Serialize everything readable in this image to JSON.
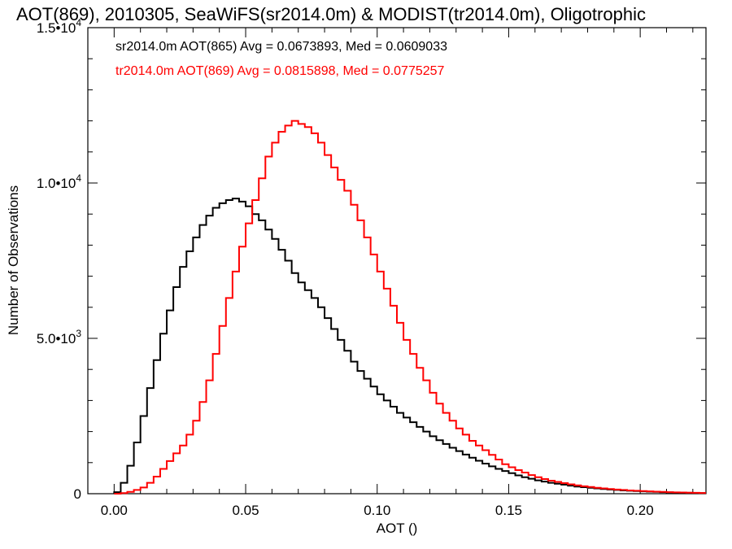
{
  "chart_data": {
    "type": "line",
    "title": "AOT(869), 2010305, SeaWiFS(sr2014.0m) & MODIST(tr2014.0m), Oligotrophic",
    "xlabel": "AOT ()",
    "ylabel": "Number of Observations",
    "xlim": [
      -0.01,
      0.225
    ],
    "ylim": [
      0,
      15000
    ],
    "x_ticks": [
      0.0,
      0.05,
      0.1,
      0.15,
      0.2
    ],
    "x_tick_labels": [
      "0.00",
      "0.05",
      "0.10",
      "0.15",
      "0.20"
    ],
    "y_ticks": [
      0,
      5000,
      10000,
      15000
    ],
    "y_tick_labels": [
      {
        "mant": "0",
        "exp": ""
      },
      {
        "mant": "5.0•10",
        "exp": "3"
      },
      {
        "mant": "1.0•10",
        "exp": "4"
      },
      {
        "mant": "1.5•10",
        "exp": "4"
      }
    ],
    "grid": false,
    "legend_position": "top-left",
    "legend": [
      "sr2014.0m AOT(865) Avg = 0.0673893, Med = 0.0609033",
      "tr2014.0m AOT(869) Avg = 0.0815898, Med = 0.0775257"
    ],
    "series": [
      {
        "color": "#000000",
        "step": true,
        "x": [
          0.0,
          0.0025,
          0.005,
          0.0075,
          0.01,
          0.0125,
          0.015,
          0.0175,
          0.02,
          0.0225,
          0.025,
          0.0275,
          0.03,
          0.0325,
          0.035,
          0.0375,
          0.04,
          0.0425,
          0.045,
          0.0475,
          0.05,
          0.0525,
          0.055,
          0.0575,
          0.06,
          0.0625,
          0.065,
          0.0675,
          0.07,
          0.0725,
          0.075,
          0.0775,
          0.08,
          0.0825,
          0.085,
          0.0875,
          0.09,
          0.0925,
          0.095,
          0.0975,
          0.1,
          0.1025,
          0.105,
          0.1075,
          0.11,
          0.1125,
          0.115,
          0.1175,
          0.12,
          0.1225,
          0.125,
          0.1275,
          0.13,
          0.1325,
          0.135,
          0.1375,
          0.14,
          0.1425,
          0.145,
          0.1475,
          0.15,
          0.1525,
          0.155,
          0.1575,
          0.16,
          0.1625,
          0.165,
          0.1675,
          0.17,
          0.1725,
          0.175,
          0.1775,
          0.18,
          0.1825,
          0.185,
          0.1875,
          0.19,
          0.1925,
          0.195,
          0.1975,
          0.2,
          0.2025,
          0.205,
          0.2075,
          0.21,
          0.2125,
          0.215,
          0.2175,
          0.22,
          0.2225
        ],
        "y": [
          50,
          350,
          900,
          1650,
          2500,
          3400,
          4300,
          5150,
          5900,
          6650,
          7300,
          7800,
          8250,
          8650,
          8950,
          9200,
          9350,
          9450,
          9500,
          9400,
          9250,
          9000,
          8800,
          8500,
          8200,
          7850,
          7500,
          7100,
          6800,
          6550,
          6300,
          6000,
          5650,
          5300,
          4950,
          4600,
          4250,
          3950,
          3700,
          3450,
          3200,
          3000,
          2800,
          2600,
          2450,
          2300,
          2150,
          2000,
          1850,
          1720,
          1600,
          1480,
          1370,
          1260,
          1160,
          1060,
          970,
          880,
          800,
          730,
          660,
          590,
          530,
          480,
          430,
          390,
          350,
          320,
          290,
          260,
          230,
          210,
          190,
          170,
          150,
          135,
          120,
          105,
          95,
          85,
          75,
          65,
          58,
          50,
          44,
          38,
          33,
          28,
          24,
          20
        ]
      },
      {
        "color": "#ff0000",
        "step": true,
        "x": [
          0.0,
          0.0025,
          0.005,
          0.0075,
          0.01,
          0.0125,
          0.015,
          0.0175,
          0.02,
          0.0225,
          0.025,
          0.0275,
          0.03,
          0.0325,
          0.035,
          0.0375,
          0.04,
          0.0425,
          0.045,
          0.0475,
          0.05,
          0.0525,
          0.055,
          0.0575,
          0.06,
          0.0625,
          0.065,
          0.0675,
          0.07,
          0.0725,
          0.075,
          0.0775,
          0.08,
          0.0825,
          0.085,
          0.0875,
          0.09,
          0.0925,
          0.095,
          0.0975,
          0.1,
          0.1025,
          0.105,
          0.1075,
          0.11,
          0.1125,
          0.115,
          0.1175,
          0.12,
          0.1225,
          0.125,
          0.1275,
          0.13,
          0.1325,
          0.135,
          0.1375,
          0.14,
          0.1425,
          0.145,
          0.1475,
          0.15,
          0.1525,
          0.155,
          0.1575,
          0.16,
          0.1625,
          0.165,
          0.1675,
          0.17,
          0.1725,
          0.175,
          0.1775,
          0.18,
          0.1825,
          0.185,
          0.1875,
          0.19,
          0.1925,
          0.195,
          0.1975,
          0.2,
          0.2025,
          0.205,
          0.2075,
          0.21,
          0.2125,
          0.215,
          0.2175,
          0.22,
          0.2225
        ],
        "y": [
          0,
          20,
          60,
          120,
          200,
          350,
          550,
          800,
          1050,
          1300,
          1550,
          1900,
          2350,
          2950,
          3650,
          4500,
          5400,
          6300,
          7150,
          7950,
          8700,
          9450,
          10150,
          10850,
          11300,
          11650,
          11850,
          12000,
          11900,
          11800,
          11600,
          11300,
          10900,
          10500,
          10100,
          9750,
          9300,
          8800,
          8250,
          7700,
          7150,
          6600,
          6050,
          5500,
          4950,
          4500,
          4050,
          3650,
          3250,
          2900,
          2600,
          2350,
          2100,
          1900,
          1700,
          1550,
          1400,
          1250,
          1100,
          950,
          850,
          760,
          680,
          600,
          530,
          470,
          420,
          380,
          340,
          300,
          270,
          240,
          215,
          190,
          170,
          150,
          135,
          120,
          105,
          95,
          85,
          75,
          65,
          58,
          50,
          44,
          38,
          33,
          28,
          24
        ]
      }
    ]
  }
}
